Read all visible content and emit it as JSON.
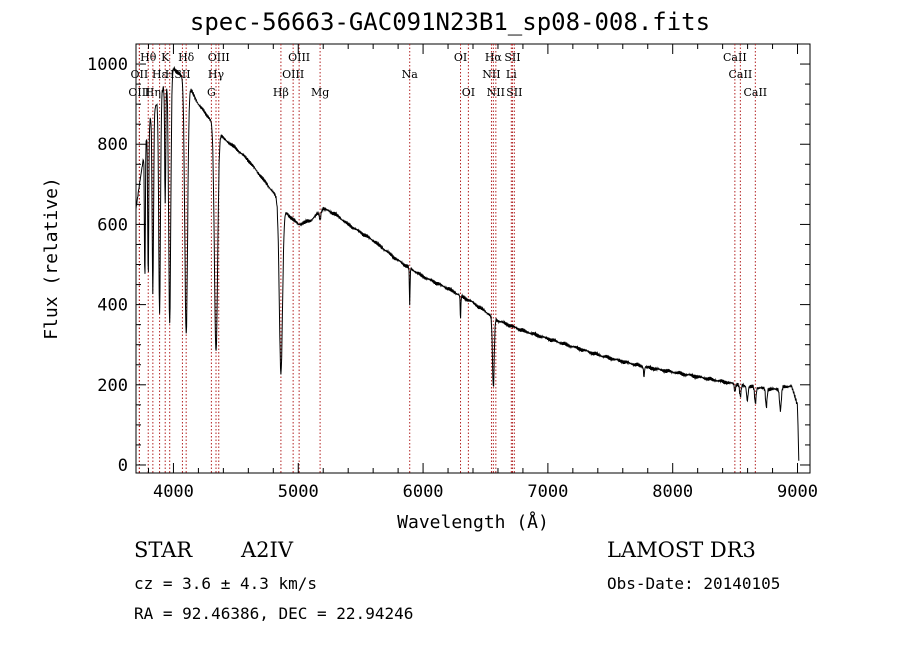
{
  "title": "spec-56663-GAC091N23B1_sp08-008.fits",
  "info": {
    "class_label": "STAR",
    "subclass": "A2IV",
    "survey": "LAMOST DR3",
    "cz": "cz = 3.6 ± 4.3 km/s",
    "obs_date": "Obs-Date: 20140105",
    "coords": "RA =  92.46386, DEC =  22.94246"
  },
  "colors": {
    "line": "#000000",
    "marker": "#b22222",
    "axis": "#000000"
  },
  "chart_data": {
    "type": "line",
    "title": "spec-56663-GAC091N23B1_sp08-008.fits",
    "xlabel": "Wavelength (Å)",
    "ylabel": "Flux (relative)",
    "xlim": [
      3700,
      9100
    ],
    "ylim": [
      -20,
      1050
    ],
    "x_ticks": [
      4000,
      5000,
      6000,
      7000,
      8000,
      9000
    ],
    "x_tick_labels": [
      "4000",
      "5000",
      "6000",
      "7000",
      "8000",
      "9000"
    ],
    "y_ticks": [
      0,
      200,
      400,
      600,
      800,
      1000
    ],
    "y_tick_labels": [
      "0",
      "200",
      "400",
      "600",
      "800",
      "1000"
    ],
    "continuum": [
      [
        3700,
        640
      ],
      [
        3800,
        850
      ],
      [
        3900,
        930
      ],
      [
        4000,
        990
      ],
      [
        4100,
        960
      ],
      [
        4200,
        900
      ],
      [
        4300,
        860
      ],
      [
        4400,
        815
      ],
      [
        4500,
        790
      ],
      [
        4600,
        760
      ],
      [
        4700,
        720
      ],
      [
        4800,
        680
      ],
      [
        4900,
        630
      ],
      [
        5000,
        600
      ],
      [
        5100,
        610
      ],
      [
        5200,
        640
      ],
      [
        5300,
        625
      ],
      [
        5400,
        600
      ],
      [
        5600,
        560
      ],
      [
        5800,
        510
      ],
      [
        6000,
        470
      ],
      [
        6200,
        440
      ],
      [
        6400,
        405
      ],
      [
        6600,
        360
      ],
      [
        6800,
        335
      ],
      [
        7000,
        315
      ],
      [
        7200,
        295
      ],
      [
        7400,
        275
      ],
      [
        7600,
        258
      ],
      [
        7800,
        243
      ],
      [
        8000,
        232
      ],
      [
        8200,
        220
      ],
      [
        8400,
        208
      ],
      [
        8600,
        196
      ],
      [
        8800,
        188
      ],
      [
        8950,
        198
      ],
      [
        9000,
        150
      ],
      [
        9010,
        15
      ]
    ],
    "absorption_lines": [
      {
        "center": 3771,
        "depth": 330,
        "width": 5
      },
      {
        "center": 3798,
        "depth": 380,
        "width": 6
      },
      {
        "center": 3835,
        "depth": 450,
        "width": 8
      },
      {
        "center": 3889,
        "depth": 540,
        "width": 10
      },
      {
        "center": 3934,
        "depth": 300,
        "width": 6
      },
      {
        "center": 3970,
        "depth": 620,
        "width": 12
      },
      {
        "center": 4102,
        "depth": 630,
        "width": 16
      },
      {
        "center": 4341,
        "depth": 560,
        "width": 18
      },
      {
        "center": 4861,
        "depth": 420,
        "width": 18
      },
      {
        "center": 5175,
        "depth": 20,
        "width": 8
      },
      {
        "center": 5893,
        "depth": 90,
        "width": 4
      },
      {
        "center": 6300,
        "depth": 60,
        "width": 4
      },
      {
        "center": 6563,
        "depth": 175,
        "width": 10
      },
      {
        "center": 7770,
        "depth": 25,
        "width": 5
      },
      {
        "center": 8498,
        "depth": 20,
        "width": 6
      },
      {
        "center": 8542,
        "depth": 30,
        "width": 8
      },
      {
        "center": 8598,
        "depth": 35,
        "width": 8
      },
      {
        "center": 8662,
        "depth": 40,
        "width": 8
      },
      {
        "center": 8750,
        "depth": 45,
        "width": 8
      },
      {
        "center": 8863,
        "depth": 55,
        "width": 10
      }
    ],
    "markers": [
      {
        "label": "Hθ",
        "wave": 3798,
        "row": 0
      },
      {
        "label": "K",
        "wave": 3934,
        "row": 0
      },
      {
        "label": "Hδ",
        "wave": 4102,
        "row": 0
      },
      {
        "label": "OIII",
        "wave": 4363,
        "row": 0
      },
      {
        "label": "OIII",
        "wave": 5007,
        "row": 0
      },
      {
        "label": "OI",
        "wave": 6300,
        "row": 0
      },
      {
        "label": "Hα",
        "wave": 6563,
        "row": 0
      },
      {
        "label": "SII",
        "wave": 6716,
        "row": 0
      },
      {
        "label": "CaII",
        "wave": 8498,
        "row": 0
      },
      {
        "label": "OII",
        "wave": 3727,
        "row": 1
      },
      {
        "label": "Hε",
        "wave": 3889,
        "row": 1
      },
      {
        "label": "H",
        "wave": 3970,
        "row": 1
      },
      {
        "label": "SII",
        "wave": 4072,
        "row": 1
      },
      {
        "label": "Hγ",
        "wave": 4341,
        "row": 1
      },
      {
        "label": "OIII",
        "wave": 4959,
        "row": 1
      },
      {
        "label": "Na",
        "wave": 5893,
        "row": 1
      },
      {
        "label": "NII",
        "wave": 6548,
        "row": 1
      },
      {
        "label": "Li",
        "wave": 6707,
        "row": 1
      },
      {
        "label": "CaII",
        "wave": 8542,
        "row": 1
      },
      {
        "label": "OIII",
        "wave": 3727,
        "row": 2
      },
      {
        "label": "Hη",
        "wave": 3835,
        "row": 2
      },
      {
        "label": "G",
        "wave": 4304,
        "row": 2
      },
      {
        "label": "Hβ",
        "wave": 4861,
        "row": 2
      },
      {
        "label": "Mg",
        "wave": 5175,
        "row": 2
      },
      {
        "label": "OI",
        "wave": 6363,
        "row": 2
      },
      {
        "label": "NII",
        "wave": 6583,
        "row": 2
      },
      {
        "label": "SII",
        "wave": 6731,
        "row": 2
      },
      {
        "label": "CaII",
        "wave": 8662,
        "row": 2
      }
    ]
  }
}
